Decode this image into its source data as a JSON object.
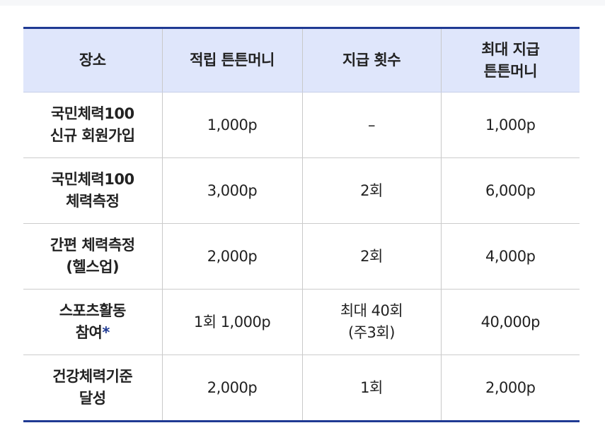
{
  "table": {
    "headers": {
      "place": "장소",
      "accumulated": "적립 튼튼머니",
      "count": "지급 횟수",
      "max_line1": "최대 지급",
      "max_line2": "튼튼머니"
    },
    "rows": [
      {
        "place_line1": "국민체력100",
        "place_line2": "신규 회원가입",
        "accumulated": "1,000p",
        "count_line1": "–",
        "count_line2": "",
        "max": "1,000p"
      },
      {
        "place_line1": "국민체력100",
        "place_line2": "체력측정",
        "accumulated": "3,000p",
        "count_line1": "2회",
        "count_line2": "",
        "max": "6,000p"
      },
      {
        "place_line1": "간편 체력측정",
        "place_line2": "(헬스업)",
        "accumulated": "2,000p",
        "count_line1": "2회",
        "count_line2": "",
        "max": "4,000p"
      },
      {
        "place_line1": "스포츠활동",
        "place_line2": "참여",
        "place_mark": "*",
        "accumulated": "1회 1,000p",
        "count_line1": "최대 40회",
        "count_line2": "(주3회)",
        "max": "40,000p"
      },
      {
        "place_line1": "건강체력기준",
        "place_line2": "달성",
        "accumulated": "2,000p",
        "count_line1": "1회",
        "count_line2": "",
        "max": "2,000p"
      }
    ]
  },
  "colors": {
    "header_background": "#dfe6fb",
    "accent_rule": "#1f3a93",
    "asterisk": "#1f3a93"
  }
}
